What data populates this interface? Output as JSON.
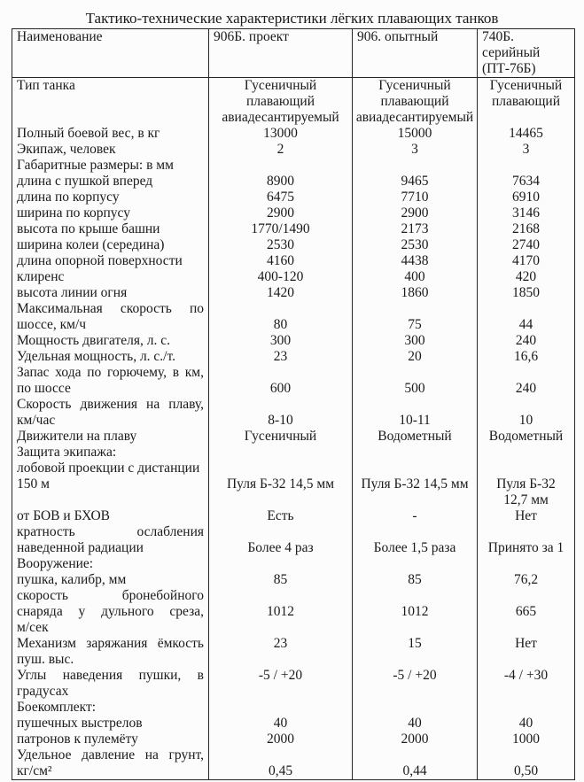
{
  "title": "Тактико-технические характеристики лёгких плавающих танков",
  "table": {
    "headers": [
      "Наименование",
      "906Б. проект",
      "906. опытный",
      "740Б.\nсерийный\n(ПТ-76Б)"
    ],
    "rows": [
      {
        "label": "Тип танка",
        "values": [
          "Гусеничный\nплавающий\nавиадесантируемый",
          "Гусеничный\nплавающий\nавиадесантируемый",
          "Гусеничный\nплавающий"
        ],
        "valign": "top"
      },
      {
        "label": "Полный боевой вес, в кг",
        "values": [
          "13000",
          "15000",
          "14465"
        ]
      },
      {
        "label": "Экипаж, человек",
        "values": [
          "2",
          "3",
          "3"
        ]
      },
      {
        "label": "Габаритные размеры: в мм",
        "values": [
          "",
          "",
          ""
        ]
      },
      {
        "label": "длина с пушкой вперед",
        "values": [
          "8900",
          "9465",
          "7634"
        ]
      },
      {
        "label": "длина по корпусу",
        "values": [
          "6475",
          "7710",
          "6910"
        ]
      },
      {
        "label": "ширина по корпусу",
        "values": [
          "2900",
          "2900",
          "3146"
        ]
      },
      {
        "label": "высота по крыше башни",
        "values": [
          "1770/1490",
          "2173",
          "2168"
        ]
      },
      {
        "label": "ширина колеи (середина)",
        "values": [
          "2530",
          "2530",
          "2740"
        ]
      },
      {
        "label": "длина опорной поверхности",
        "values": [
          "4160",
          "4438",
          "4170"
        ]
      },
      {
        "label": "клиренс",
        "values": [
          "400-120",
          "400",
          "420"
        ]
      },
      {
        "label": "высота линии огня",
        "values": [
          "1420",
          "1860",
          "1850"
        ]
      },
      {
        "label": "Максимальная скорость по\nшоссе, км/ч",
        "values": [
          "80",
          "75",
          "44"
        ],
        "valign": "bottom",
        "justify": true
      },
      {
        "label": "Мощность двигателя, л. с.",
        "values": [
          "300",
          "300",
          "240"
        ]
      },
      {
        "label": "Удельная мощность, л. с./т.",
        "values": [
          "23",
          "20",
          "16,6"
        ]
      },
      {
        "label": "Запас хода по горючему, в км,\nпо шоссе",
        "values": [
          "600",
          "500",
          "240"
        ],
        "valign": "bottom",
        "justify": true
      },
      {
        "label": "Скорость движения на плаву,\nкм/час",
        "values": [
          "8-10",
          "10-11",
          "10"
        ],
        "valign": "bottom",
        "justify": true
      },
      {
        "label": "Движители на плаву",
        "values": [
          "Гусеничный",
          "Водометный",
          "Водометный"
        ]
      },
      {
        "label": "Защита экипажа:",
        "values": [
          "",
          "",
          ""
        ]
      },
      {
        "label": "лобовой проекции с дистанции\n150 м\n",
        "values": [
          "Пуля Б-32 14,5 мм",
          "Пуля Б-32 14,5 мм",
          "Пуля Б-32\n12,7 мм"
        ],
        "valigns": [
          "middle",
          "middle",
          "bottom"
        ]
      },
      {
        "label": "от БОВ и БХОВ",
        "values": [
          "Есть",
          "-",
          "Нет"
        ]
      },
      {
        "label": "кратность ослабления\nнаведенной радиации",
        "values": [
          "Более 4 раз",
          "Более 1,5 раза",
          "Принято за 1"
        ],
        "valign": "bottom",
        "justify": true
      },
      {
        "label": "Вооружение:",
        "values": [
          "",
          "",
          ""
        ]
      },
      {
        "label": "пушка, калибр, мм",
        "values": [
          "85",
          "85",
          "76,2"
        ]
      },
      {
        "label": "скорость бронебойного\nснаряда у дульного среза,\nм/сек",
        "values": [
          "1012",
          "1012",
          "665"
        ],
        "valign": "middle",
        "justify": true
      },
      {
        "label": "Механизм заряжания ёмкость\nпуш. выс.",
        "values": [
          "23",
          "15",
          "Нет"
        ],
        "valign": "top",
        "justify": true
      },
      {
        "label": "Углы наведения пушки, в\nградусах",
        "values": [
          "-5 / +20",
          "-5 / +20",
          "-4 / +30"
        ],
        "valign": "top",
        "justify": true
      },
      {
        "label": "Боекомплект:",
        "values": [
          "",
          "",
          ""
        ]
      },
      {
        "label": "пушечных выстрелов",
        "values": [
          "40",
          "40",
          "40"
        ]
      },
      {
        "label": "патронов к пулемёту",
        "values": [
          "2000",
          "2000",
          "1000"
        ]
      },
      {
        "label": "Удельное давление на грунт,\nкг/см²",
        "values": [
          "0,45",
          "0,44",
          "0,50"
        ],
        "valign": "bottom",
        "justify": true
      }
    ]
  }
}
